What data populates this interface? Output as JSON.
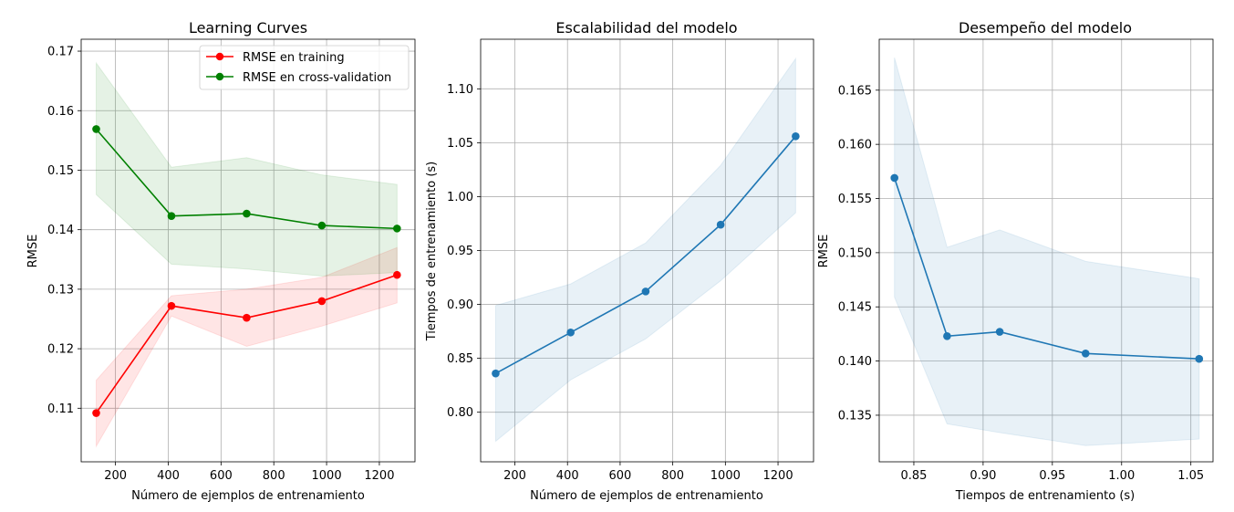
{
  "chart_data": [
    {
      "type": "line",
      "title": "Learning Curves",
      "xlabel": "Número de ejemplos de entrenamiento",
      "ylabel": "RMSE",
      "xlim": [
        70,
        1335
      ],
      "ylim": [
        0.101,
        0.172
      ],
      "xticks": [
        200,
        400,
        600,
        800,
        1000,
        1200
      ],
      "yticks": [
        0.11,
        0.12,
        0.13,
        0.14,
        0.15,
        0.16,
        0.17
      ],
      "yformat": 2,
      "grid": true,
      "legend": "top-right",
      "x": [
        127,
        412,
        697,
        982,
        1267
      ],
      "series": [
        {
          "name": "RMSE en training",
          "color": "#ff0000",
          "values": [
            0.1092,
            0.1272,
            0.1252,
            0.128,
            0.1324
          ],
          "lower": [
            0.1036,
            0.1255,
            0.1204,
            0.1238,
            0.1277
          ],
          "upper": [
            0.1147,
            0.1289,
            0.13,
            0.132,
            0.137
          ]
        },
        {
          "name": "RMSE en cross-validation",
          "color": "#008000",
          "values": [
            0.1569,
            0.1423,
            0.1427,
            0.1407,
            0.1402
          ],
          "lower": [
            0.1459,
            0.1342,
            0.1334,
            0.1322,
            0.1328
          ],
          "upper": [
            0.168,
            0.1505,
            0.1521,
            0.1492,
            0.1476
          ]
        }
      ]
    },
    {
      "type": "line",
      "title": "Escalabilidad del modelo",
      "xlabel": "Número de ejemplos de entrenamiento",
      "ylabel": "Tiempos de entrenamiento (s)",
      "xlim": [
        70,
        1335
      ],
      "ylim": [
        0.754,
        1.146
      ],
      "xticks": [
        200,
        400,
        600,
        800,
        1000,
        1200
      ],
      "yticks": [
        0.8,
        0.85,
        0.9,
        0.95,
        1.0,
        1.05,
        1.1
      ],
      "yformat": 2,
      "grid": true,
      "x": [
        127,
        412,
        697,
        982,
        1267
      ],
      "series": [
        {
          "name": "",
          "color": "#1f77b4",
          "values": [
            0.836,
            0.874,
            0.912,
            0.974,
            1.056
          ],
          "lower": [
            0.773,
            0.83,
            0.868,
            0.922,
            0.985
          ],
          "upper": [
            0.899,
            0.919,
            0.957,
            1.029,
            1.128
          ]
        }
      ]
    },
    {
      "type": "line",
      "title": "Desempeño del modelo",
      "xlabel": "Tiempos de entrenamiento (s)",
      "ylabel": "RMSE",
      "xlim": [
        0.825,
        1.066
      ],
      "ylim": [
        0.1307,
        0.1697
      ],
      "xticks": [
        0.85,
        0.9,
        0.95,
        1.0,
        1.05
      ],
      "yticks": [
        0.135,
        0.14,
        0.145,
        0.15,
        0.155,
        0.16,
        0.165
      ],
      "xformat": 2,
      "yformat": 3,
      "grid": true,
      "x": [
        0.836,
        0.874,
        0.912,
        0.974,
        1.056
      ],
      "series": [
        {
          "name": "",
          "color": "#1f77b4",
          "values": [
            0.1569,
            0.1423,
            0.1427,
            0.1407,
            0.1402
          ],
          "lower": [
            0.1459,
            0.1342,
            0.1334,
            0.1322,
            0.1328
          ],
          "upper": [
            0.168,
            0.1505,
            0.1521,
            0.1492,
            0.1476
          ]
        }
      ]
    }
  ]
}
